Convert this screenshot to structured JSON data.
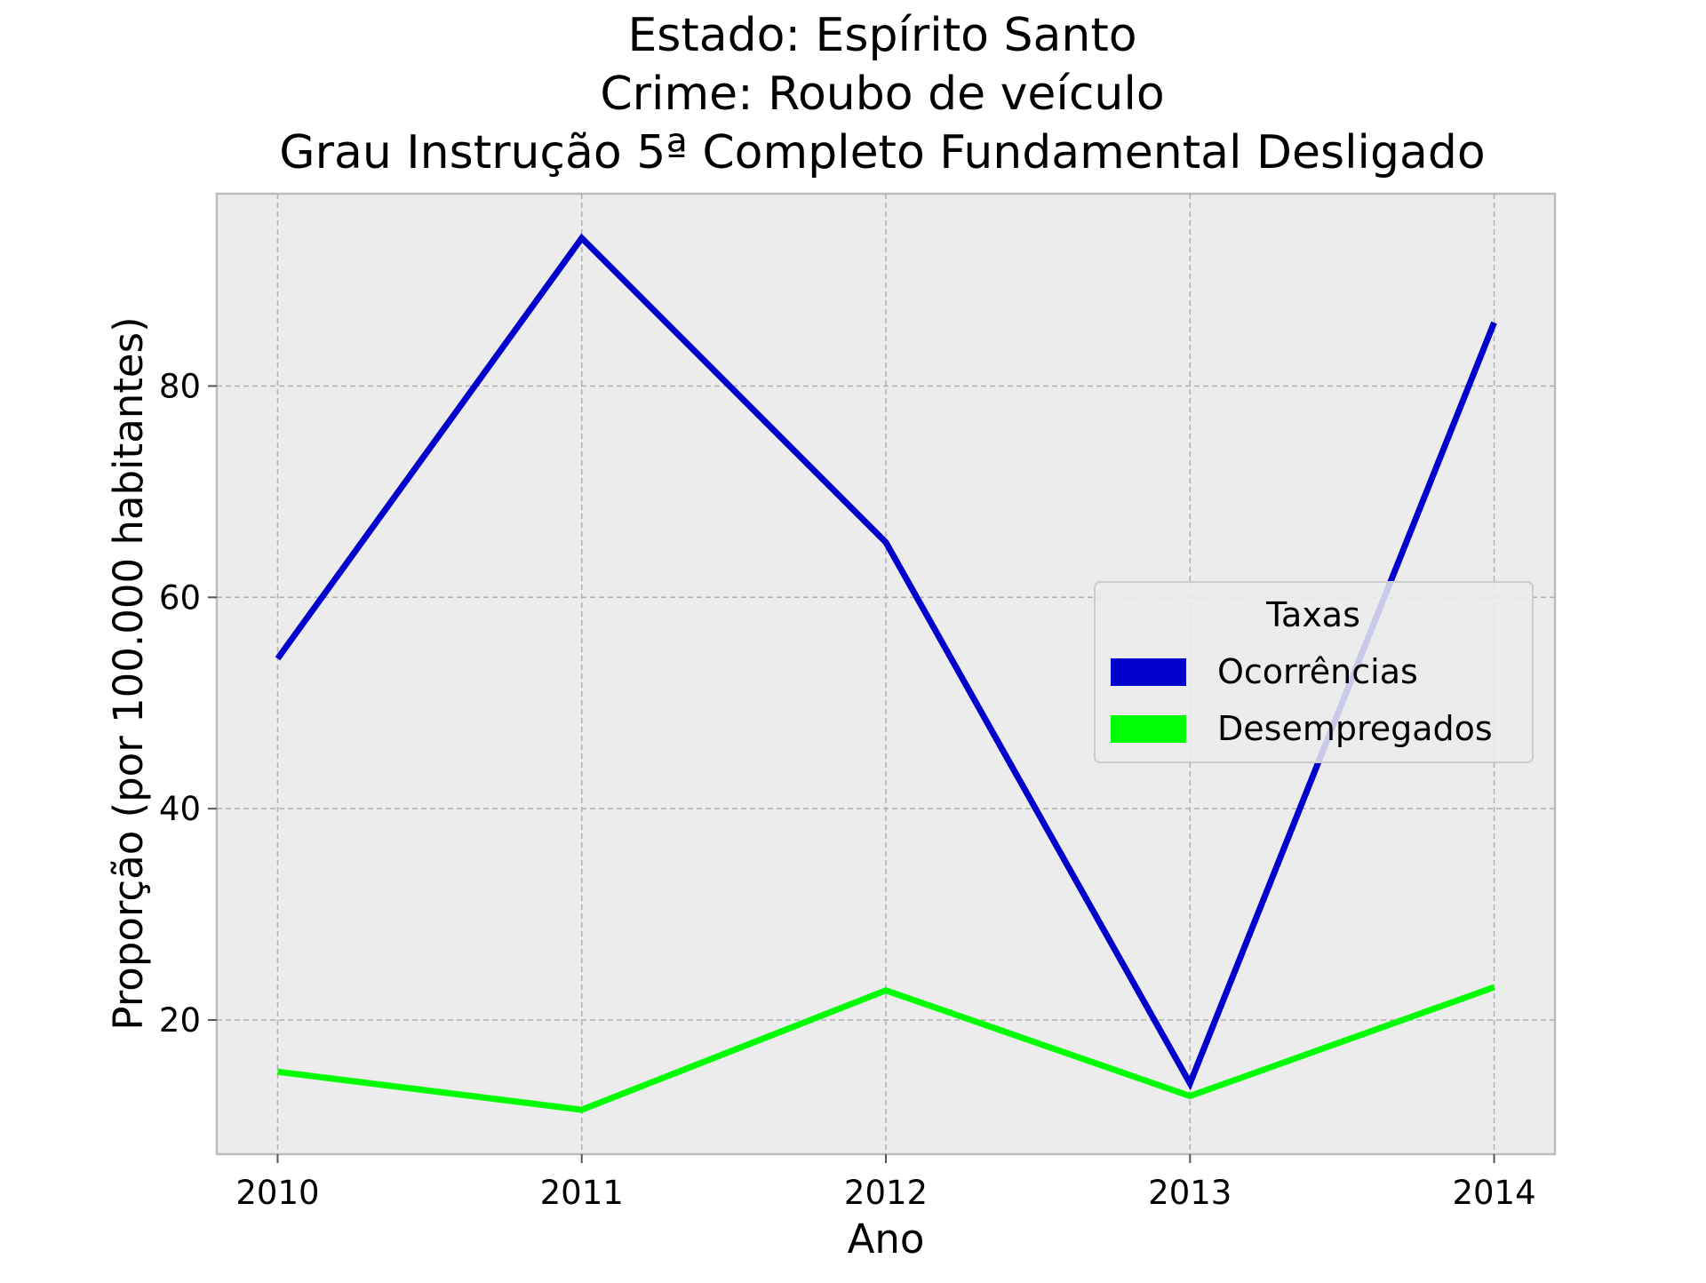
{
  "chart_data": {
    "type": "line",
    "title_lines": [
      "Estado: Espírito Santo",
      "Crime: Roubo de veículo",
      "Grau Instrução  5ª Completo Fundamental   Desligado"
    ],
    "xlabel": "Ano",
    "ylabel": "Proporção (por 100.000 habitantes)",
    "x": [
      2010,
      2011,
      2012,
      2013,
      2014
    ],
    "x_tick_labels": [
      "2010",
      "2011",
      "2012",
      "2013",
      "2014"
    ],
    "y_ticks": [
      20,
      40,
      60,
      80
    ],
    "y_tick_labels": [
      "20",
      "40",
      "60",
      "80"
    ],
    "xlim": [
      2009.8,
      2014.2
    ],
    "ylim": [
      7.3,
      98.2
    ],
    "grid": true,
    "legend": {
      "title": "Taxas",
      "position": "center-right"
    },
    "series": [
      {
        "name": "Ocorrências",
        "color": "#0000cc",
        "values": [
          54.2,
          94.0,
          65.2,
          14.0,
          86.0
        ]
      },
      {
        "name": "Desempregados",
        "color": "#00ff00",
        "values": [
          15.1,
          11.5,
          22.8,
          12.8,
          23.1
        ]
      }
    ]
  }
}
